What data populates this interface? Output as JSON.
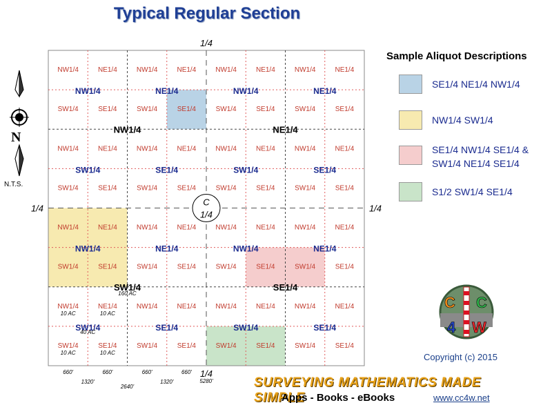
{
  "title": "Typical Regular Section",
  "legend": {
    "heading": "Sample Aliquot Descriptions",
    "items": [
      {
        "color": "#b9d3e6",
        "text": "SE1/4 NE1/4 NW1/4"
      },
      {
        "color": "#f7eab0",
        "text": "NW1/4 SW1/4"
      },
      {
        "color": "#f5cdcd",
        "text": "SE1/4 NW1/4 SE1/4 &",
        "text2": "SW1/4 NE1/4 SE1/4"
      },
      {
        "color": "#c9e4c9",
        "text": "S1/2 SW1/4 SE1/4"
      }
    ]
  },
  "north": {
    "letter": "N",
    "scale": "N.T.S."
  },
  "section": {
    "quarter_top": "1/4",
    "quarter_left": "1/4",
    "quarter_right": "1/4",
    "quarter_bottom": "1/4",
    "center_c": "C",
    "center_q": "1/4",
    "sixteenth_labels": [
      "NW1/4",
      "NE1/4",
      "SW1/4",
      "SE1/4"
    ],
    "quarter_labels": [
      "NW1/4",
      "NE1/4",
      "SW1/4",
      "SE1/4"
    ],
    "acreage": {
      "ten_ac": "10 AC",
      "forty_ac": "40 AC",
      "onesixty_ac": "160 AC"
    },
    "dimensions": {
      "d660": "660'",
      "d1320": "1320'",
      "d2640": "2640'",
      "d5280": "5280'"
    },
    "highlights": {
      "blue": "#b9d3e6",
      "yellow": "#f7eab0",
      "pink": "#f5cdcd",
      "green": "#c9e4c9"
    }
  },
  "logo": {
    "letters": [
      "C",
      "C",
      "4",
      "W"
    ]
  },
  "copyright": "Copyright (c) 2015",
  "banner": "SURVEYING MATHEMATICS MADE SIMPLE",
  "apps": "Apps - Books - eBooks",
  "website": "www.cc4w.net"
}
